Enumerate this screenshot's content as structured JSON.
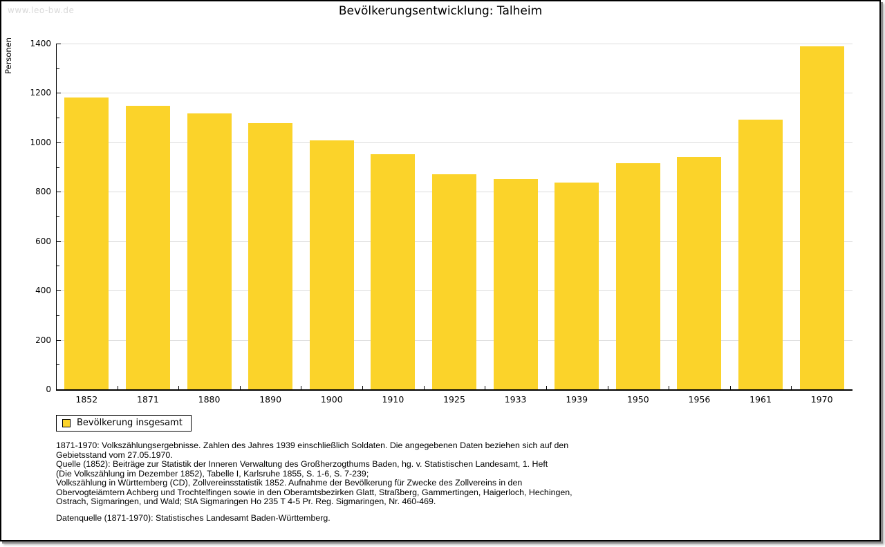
{
  "watermark": "www.leo-bw.de",
  "chart_data": {
    "type": "bar",
    "title": "Bevölkerungsentwicklung: Talheim",
    "categories": [
      "1852",
      "1871",
      "1880",
      "1890",
      "1900",
      "1910",
      "1925",
      "1933",
      "1939",
      "1950",
      "1956",
      "1961",
      "1970"
    ],
    "series": [
      {
        "name": "Bevölkerung insgesamt",
        "values": [
          1182,
          1148,
          1117,
          1078,
          1007,
          951,
          871,
          850,
          836,
          915,
          940,
          1092,
          1389
        ]
      }
    ],
    "xlabel": "",
    "ylabel": "Personen",
    "ylim": [
      0,
      1400
    ],
    "yticks": [
      0,
      200,
      400,
      600,
      800,
      1000,
      1200,
      1400
    ],
    "minor_yticks": [
      100,
      300,
      500,
      700,
      900,
      1100,
      1300
    ],
    "grid": true,
    "bar_color": "#FBD32A",
    "legend_position": "below-chart-left"
  },
  "legend": {
    "label": "Bevölkerung insgesamt"
  },
  "footer": {
    "lines": [
      "1871-1970: Volkszählungsergebnisse. Zahlen des Jahres 1939 einschließlich Soldaten. Die angegebenen Daten beziehen sich auf den",
      "Gebietsstand vom 27.05.1970.",
      "Quelle (1852): Beiträge zur Statistik der Inneren Verwaltung des Großherzogthums Baden, hg. v. Statistischen Landesamt, 1. Heft",
      "(Die Volkszählung im Dezember 1852), Tabelle I, Karlsruhe 1855, S. 1-6, S. 7-239;",
      "Volkszählung in Württemberg (CD), Zollvereinsstatistik 1852. Aufnahme der Bevölkerung für Zwecke des Zollvereins in den",
      "Obervogteiämtern Achberg und Trochtelfingen sowie in den Oberamtsbezirken Glatt, Straßberg, Gammertingen, Haigerloch, Hechingen,",
      "Ostrach, Sigmaringen, und Wald; StA Sigmaringen Ho 235 T 4-5 Pr. Reg. Sigmaringen, Nr. 460-469."
    ],
    "datasource": "Datenquelle (1871-1970): Statistisches Landesamt Baden-Württemberg."
  }
}
